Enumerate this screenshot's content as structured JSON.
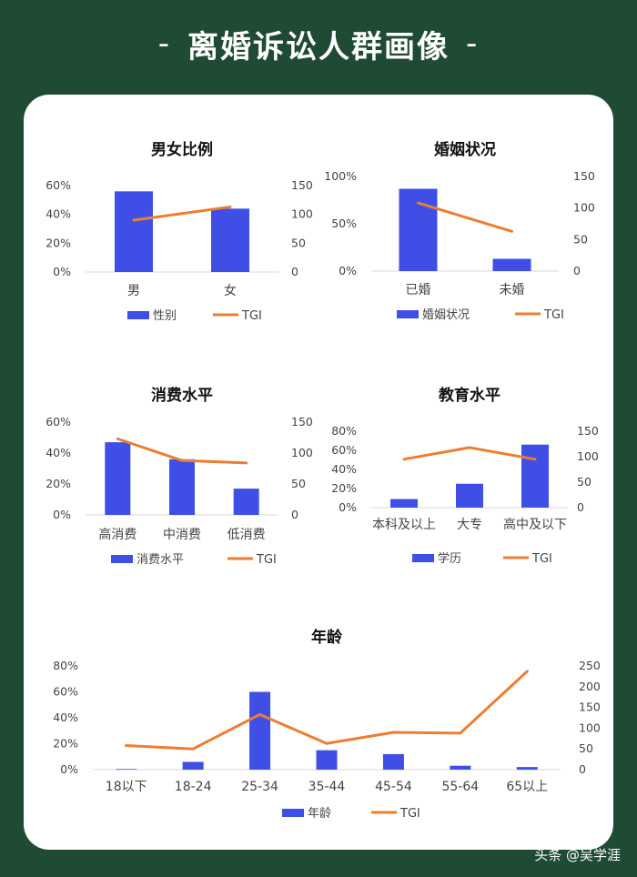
{
  "page": {
    "title": "离婚诉讼人群画像",
    "title_dash": "-"
  },
  "colors": {
    "bar": "#3f4fe6",
    "line": "#ed7d31",
    "background": "#1f4a33",
    "card": "#ffffff"
  },
  "watermark": "头条 @吴学涯",
  "chart_data": [
    {
      "type": "bar",
      "title": "男女比例",
      "categories": [
        "男",
        "女"
      ],
      "series": [
        {
          "name": "性别",
          "type": "bar",
          "axis": "left",
          "values": [
            56,
            44
          ]
        },
        {
          "name": "TGI",
          "type": "line",
          "axis": "right",
          "values": [
            90,
            113
          ]
        }
      ],
      "y_left": {
        "ticks": [
          "0%",
          "20%",
          "40%",
          "60%"
        ],
        "range": [
          0,
          60
        ]
      },
      "y_right": {
        "ticks": [
          "0",
          "50",
          "100",
          "150"
        ],
        "range": [
          0,
          150
        ]
      },
      "legend_position": "bottom"
    },
    {
      "type": "bar",
      "title": "婚姻状况",
      "categories": [
        "已婚",
        "未婚"
      ],
      "series": [
        {
          "name": "婚姻状况",
          "type": "bar",
          "axis": "left",
          "values": [
            87,
            13
          ]
        },
        {
          "name": "TGI",
          "type": "line",
          "axis": "right",
          "values": [
            108,
            63
          ]
        }
      ],
      "y_left": {
        "ticks": [
          "0%",
          "50%",
          "100%"
        ],
        "range": [
          0,
          100
        ]
      },
      "y_right": {
        "ticks": [
          "0",
          "50",
          "100",
          "150"
        ],
        "range": [
          0,
          150
        ]
      },
      "legend_position": "bottom"
    },
    {
      "type": "bar",
      "title": "消费水平",
      "categories": [
        "高消费",
        "中消费",
        "低消费"
      ],
      "series": [
        {
          "name": "消费水平",
          "type": "bar",
          "axis": "left",
          "values": [
            47,
            36,
            17
          ]
        },
        {
          "name": "TGI",
          "type": "line",
          "axis": "right",
          "values": [
            123,
            88,
            84
          ]
        }
      ],
      "y_left": {
        "ticks": [
          "0%",
          "20%",
          "40%",
          "60%"
        ],
        "range": [
          0,
          60
        ]
      },
      "y_right": {
        "ticks": [
          "0",
          "50",
          "100",
          "150"
        ],
        "range": [
          0,
          150
        ]
      },
      "legend_position": "bottom"
    },
    {
      "type": "bar",
      "title": "教育水平",
      "categories": [
        "本科及以上",
        "大专",
        "高中及以下"
      ],
      "series": [
        {
          "name": "学历",
          "type": "bar",
          "axis": "left",
          "values": [
            9,
            25,
            66
          ]
        },
        {
          "name": "TGI",
          "type": "line",
          "axis": "right",
          "values": [
            95,
            118,
            95
          ]
        }
      ],
      "y_left": {
        "ticks": [
          "0%",
          "20%",
          "40%",
          "60%",
          "80%"
        ],
        "range": [
          0,
          80
        ]
      },
      "y_right": {
        "ticks": [
          "0",
          "50",
          "100",
          "150"
        ],
        "range": [
          0,
          150
        ]
      },
      "legend_position": "bottom"
    },
    {
      "type": "bar",
      "title": "年龄",
      "categories": [
        "18以下",
        "18-24",
        "25-34",
        "35-44",
        "45-54",
        "55-64",
        "65以上"
      ],
      "series": [
        {
          "name": "年龄",
          "type": "bar",
          "axis": "left",
          "values": [
            0.5,
            6,
            60,
            15,
            12,
            3,
            2
          ]
        },
        {
          "name": "TGI",
          "type": "line",
          "axis": "right",
          "values": [
            58,
            50,
            133,
            63,
            90,
            88,
            237
          ]
        }
      ],
      "y_left": {
        "ticks": [
          "0%",
          "20%",
          "40%",
          "60%",
          "80%"
        ],
        "range": [
          0,
          80
        ]
      },
      "y_right": {
        "ticks": [
          "0",
          "50",
          "100",
          "150",
          "200",
          "250"
        ],
        "range": [
          0,
          250
        ]
      },
      "legend_position": "bottom"
    }
  ]
}
